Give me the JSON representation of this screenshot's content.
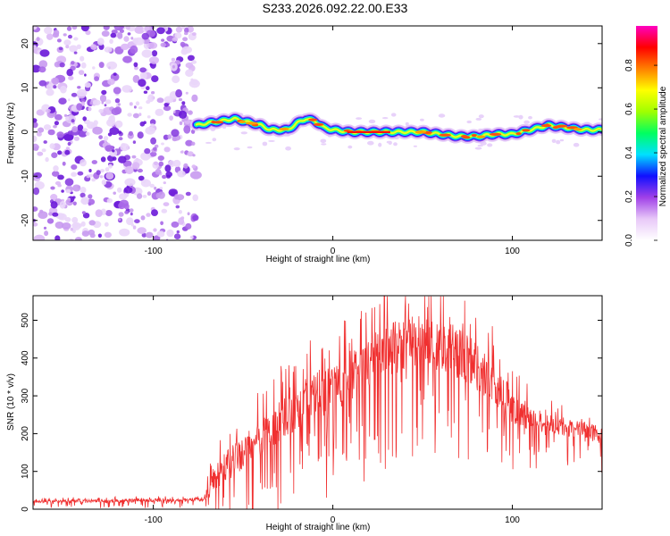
{
  "title": "S233.2026.092.22.00.E33",
  "chart_data": [
    {
      "type": "heatmap",
      "xlabel": "Height of straight line (km)",
      "ylabel": "Frequency (Hz)",
      "xlim": [
        -167,
        150
      ],
      "ylim": [
        -24.5,
        24
      ],
      "xticks": [
        -100,
        0,
        100
      ],
      "xtick_labels": [
        "-100",
        "0",
        "100"
      ],
      "yticks": [
        -20,
        -10,
        0,
        10,
        20
      ],
      "ytick_labels": [
        "-20",
        "-10",
        "0",
        "10",
        "20"
      ],
      "noise_region_x": [
        -167,
        -76
      ],
      "ridge": {
        "x": [
          -76,
          -70,
          -62,
          -55,
          -50,
          -45,
          -40,
          -35,
          -30,
          -25,
          -20,
          -15,
          -10,
          -5,
          0,
          10,
          30,
          50,
          60,
          70,
          80,
          90,
          100,
          110,
          120,
          130,
          140,
          150
        ],
        "freq": [
          1.5,
          2.0,
          2.5,
          3.0,
          2.5,
          2.0,
          1.5,
          0.5,
          0.5,
          0.5,
          2.0,
          3.0,
          2.5,
          1.0,
          0.5,
          0.0,
          0.0,
          0.0,
          -0.5,
          -1.0,
          -1.0,
          -0.5,
          -0.5,
          0.5,
          1.5,
          1.0,
          0.5,
          0.5
        ]
      },
      "colorbar": {
        "label": "Normalized spectral amplitude",
        "range": [
          0,
          0.98
        ],
        "ticks": [
          0.0,
          0.2,
          0.4,
          0.6,
          0.8
        ],
        "tick_labels": [
          "0.0",
          "0.2",
          "0.4",
          "0.6",
          "0.8"
        ],
        "colors": [
          "#ffffff",
          "#e8c8f8",
          "#a040e8",
          "#1010ff",
          "#00e0ff",
          "#00ff60",
          "#a0ff00",
          "#ffff00",
          "#ff8000",
          "#ff0000",
          "#ff00c0"
        ]
      }
    },
    {
      "type": "line",
      "xlabel": "Height of straight line (km)",
      "ylabel": "SNR (10 * v/v)",
      "xlim": [
        -167,
        150
      ],
      "ylim": [
        0,
        565
      ],
      "xticks": [
        -100,
        0,
        100
      ],
      "xtick_labels": [
        "-100",
        "0",
        "100"
      ],
      "yticks": [
        0,
        100,
        200,
        300,
        400,
        500
      ],
      "ytick_labels": [
        "0",
        "100",
        "200",
        "300",
        "400",
        "500"
      ],
      "color": "#f03030",
      "envelope": {
        "x": [
          -167,
          -120,
          -72,
          -68,
          -60,
          -50,
          -40,
          -30,
          -20,
          -10,
          0,
          10,
          20,
          30,
          40,
          50,
          60,
          70,
          80,
          90,
          100,
          110,
          120,
          130,
          140,
          150
        ],
        "y": [
          20,
          22,
          25,
          60,
          110,
          150,
          190,
          230,
          270,
          300,
          320,
          350,
          390,
          420,
          440,
          445,
          435,
          410,
          380,
          330,
          270,
          240,
          220,
          215,
          210,
          195
        ],
        "amp": [
          8,
          10,
          10,
          60,
          90,
          100,
          110,
          120,
          130,
          140,
          150,
          150,
          160,
          160,
          160,
          160,
          150,
          150,
          140,
          130,
          100,
          70,
          60,
          50,
          45,
          60
        ]
      }
    }
  ]
}
